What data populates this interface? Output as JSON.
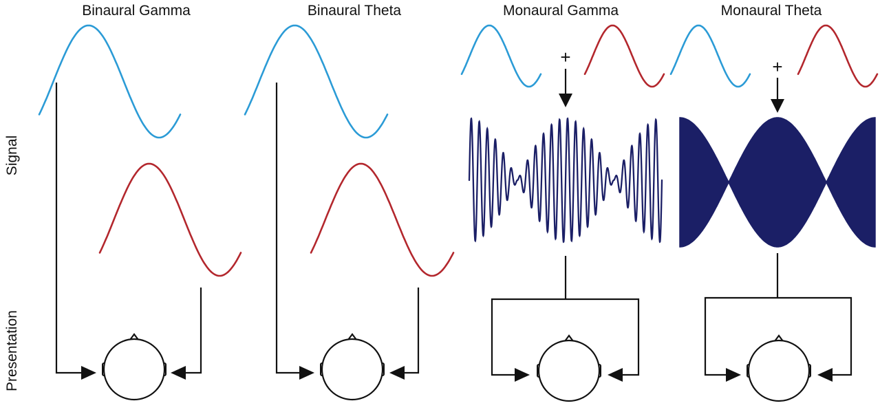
{
  "titles": {
    "binaural_gamma": "Binaural Gamma",
    "binaural_theta": "Binaural Theta",
    "monaural_gamma": "Monaural Gamma",
    "monaural_theta": "Monaural Theta"
  },
  "row_labels": {
    "signal": "Signal",
    "presentation": "Presentation"
  },
  "operators": {
    "sum_symbol": "+"
  },
  "colors": {
    "left_tone": "#2b9bd6",
    "right_tone": "#b3272d",
    "combined_signal": "#1b1f66",
    "lines": "#111111"
  },
  "icons": [
    "head-icon",
    "arrow-right-icon",
    "arrow-left-icon",
    "arrow-down-icon"
  ]
}
